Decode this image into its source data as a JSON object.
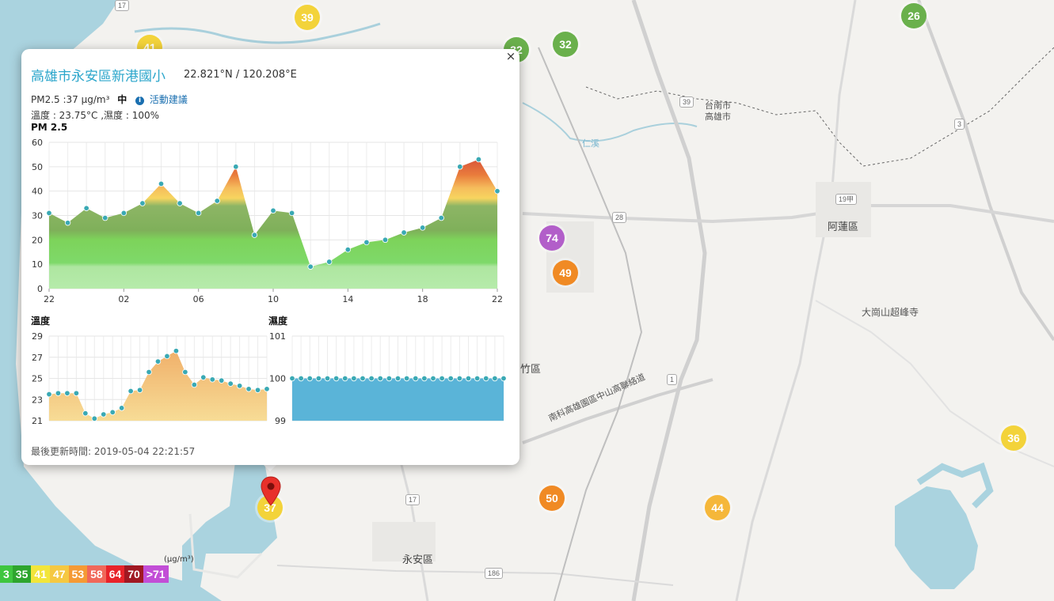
{
  "map": {
    "place_labels": [
      "阿蓮區",
      "大崗山超峰寺",
      "永安區",
      "台南市",
      "高雄市",
      "南科高雄園區中山高聯絡道",
      "竹區",
      "仁溪"
    ],
    "road_numbers": [
      "17",
      "39",
      "28",
      "1",
      "19甲",
      "186",
      "3",
      "17"
    ],
    "station_markers": [
      {
        "value": "39",
        "color": "#f3d33a"
      },
      {
        "value": "41",
        "color": "#f3d33a"
      },
      {
        "value": "32",
        "color": "#6ab04c"
      },
      {
        "value": "32",
        "color": "#6ab04c"
      },
      {
        "value": "26",
        "color": "#6ab04c"
      },
      {
        "value": "74",
        "color": "#b25ec9"
      },
      {
        "value": "49",
        "color": "#f08a24"
      },
      {
        "value": "36",
        "color": "#f3d33a"
      },
      {
        "value": "50",
        "color": "#f08a24"
      },
      {
        "value": "44",
        "color": "#f5b73a"
      },
      {
        "value": "37",
        "color": "#f3d33a"
      }
    ]
  },
  "popup": {
    "close": "×",
    "station_name": "高雄市永安區新港國小",
    "coord": "22.821°N / 120.208°E",
    "pm_label": "PM2.5 :37 μg/m³",
    "pm_level": "中",
    "info_icon": "i",
    "advice": "活動建議",
    "weather_line": "溫度 : 23.75°C ,濕度 : 100%",
    "pm_chart_title": "PM 2.5",
    "temp_title": "溫度",
    "hum_title": "濕度",
    "updated": "最後更新時間: 2019-05-04 22:21:57"
  },
  "chart_data": [
    {
      "type": "area",
      "title": "PM 2.5",
      "x_tick_labels": [
        "22",
        "02",
        "06",
        "10",
        "14",
        "18",
        "22"
      ],
      "y_ticks": [
        0,
        10,
        20,
        30,
        40,
        50,
        60
      ],
      "ylim": [
        0,
        60
      ],
      "values": [
        31,
        27,
        33,
        29,
        31,
        35,
        43,
        35,
        31,
        36,
        50,
        22,
        32,
        31,
        9,
        11,
        16,
        19,
        20,
        23,
        25,
        29,
        50,
        53,
        40
      ],
      "grid": true,
      "colors": {
        "line": "#4fb6bf",
        "point": "#3aa9b4"
      }
    },
    {
      "type": "area",
      "title": "溫度",
      "y_ticks": [
        21,
        23,
        25,
        27,
        29
      ],
      "ylim": [
        21,
        29
      ],
      "values": [
        23.5,
        23.6,
        23.6,
        23.6,
        21.7,
        21.2,
        21.6,
        21.8,
        22.2,
        23.8,
        23.9,
        25.6,
        26.6,
        27.1,
        27.6,
        25.6,
        24.4,
        25.1,
        24.9,
        24.8,
        24.5,
        24.3,
        24.0,
        23.9,
        24.0
      ],
      "grid": true,
      "colors": {
        "fill": "#f4c57a",
        "point": "#3aa9b4"
      }
    },
    {
      "type": "area",
      "title": "濕度",
      "y_ticks": [
        99,
        100,
        101
      ],
      "ylim": [
        99,
        101
      ],
      "values": [
        100,
        100,
        100,
        100,
        100,
        100,
        100,
        100,
        100,
        100,
        100,
        100,
        100,
        100,
        100,
        100,
        100,
        100,
        100,
        100,
        100,
        100,
        100,
        100,
        100
      ],
      "grid": true,
      "colors": {
        "fill": "#5ab4d8",
        "point": "#3aa9b4"
      }
    }
  ],
  "legend": {
    "unit": "(μg/m³)",
    "items": [
      {
        "label": "3",
        "color": "#3fc63f"
      },
      {
        "label": "35",
        "color": "#2ea52e"
      },
      {
        "label": "41",
        "color": "#f2e53a"
      },
      {
        "label": "47",
        "color": "#f5c842"
      },
      {
        "label": "53",
        "color": "#f59a35"
      },
      {
        "label": "58",
        "color": "#f0685a"
      },
      {
        "label": "64",
        "color": "#e8232a"
      },
      {
        "label": "70",
        "color": "#a01822"
      },
      {
        "label": ">71",
        "color": "#c24ed6"
      }
    ]
  }
}
